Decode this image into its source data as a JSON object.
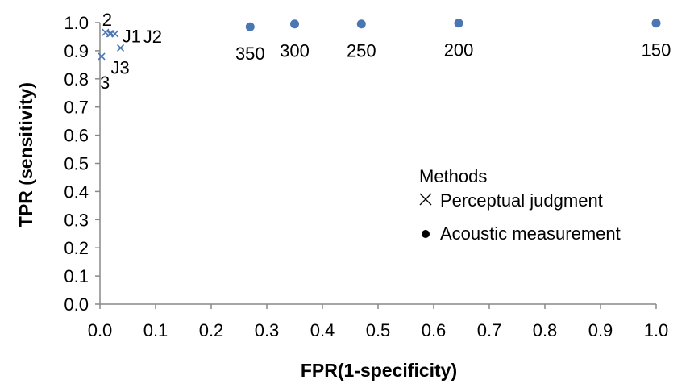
{
  "chart_data": {
    "type": "scatter",
    "title": "",
    "xlabel": "FPR(1-specificity)",
    "ylabel": "TPR (sensitivity)",
    "xlim": [
      0,
      1
    ],
    "ylim": [
      0,
      1
    ],
    "xticks": [
      "0.0",
      "0.1",
      "0.2",
      "0.3",
      "0.4",
      "0.5",
      "0.6",
      "0.7",
      "0.8",
      "0.9",
      "1.0"
    ],
    "yticks": [
      "0.0",
      "0.1",
      "0.2",
      "0.3",
      "0.4",
      "0.5",
      "0.6",
      "0.7",
      "0.8",
      "0.9",
      "1.0"
    ],
    "grid": false,
    "legend": {
      "title": "Methods",
      "position": "right",
      "entries": [
        "Perceptual judgment",
        "Acoustic measurement"
      ]
    },
    "colors": {
      "points": "#4a76b4"
    },
    "series": [
      {
        "name": "Perceptual judgment",
        "marker": "x",
        "points": [
          {
            "label": "2",
            "x": 0.01,
            "y": 0.965
          },
          {
            "label": "",
            "x": 0.018,
            "y": 0.96
          },
          {
            "label": "J1",
            "x": 0.02,
            "y": 0.962
          },
          {
            "label": "J2",
            "x": 0.027,
            "y": 0.96
          },
          {
            "label": "J3",
            "x": 0.037,
            "y": 0.91
          },
          {
            "label": "3",
            "x": 0.003,
            "y": 0.88
          }
        ]
      },
      {
        "name": "Acoustic measurement",
        "marker": "circle",
        "points": [
          {
            "label": "350",
            "x": 0.27,
            "y": 0.985
          },
          {
            "label": "300",
            "x": 0.35,
            "y": 0.995
          },
          {
            "label": "250",
            "x": 0.47,
            "y": 0.995
          },
          {
            "label": "200",
            "x": 0.645,
            "y": 0.998
          },
          {
            "label": "150",
            "x": 1.0,
            "y": 0.998
          }
        ]
      }
    ]
  }
}
